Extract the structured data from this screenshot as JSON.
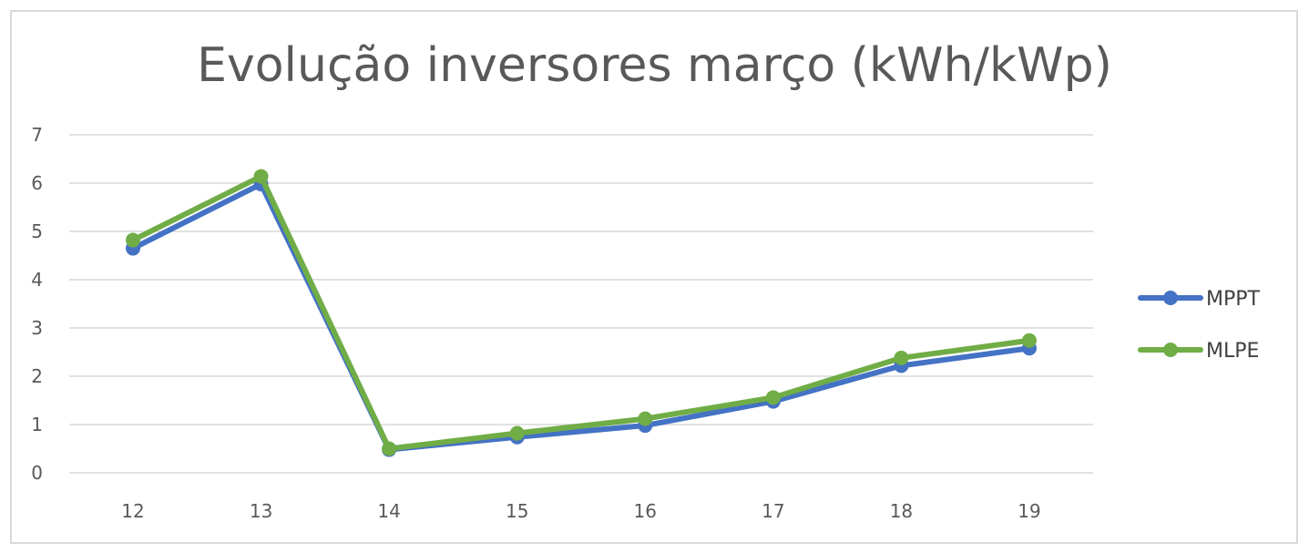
{
  "chart_data": {
    "type": "line",
    "title": "Evolução inversores março (kWh/kWp)",
    "xlabel": "",
    "ylabel": "",
    "categories": [
      "12",
      "13",
      "14",
      "15",
      "16",
      "17",
      "18",
      "19"
    ],
    "ylim": [
      0,
      7
    ],
    "yticks": [
      "0",
      "1",
      "2",
      "3",
      "4",
      "5",
      "6",
      "7"
    ],
    "grid": true,
    "legend_position": "right",
    "series": [
      {
        "name": "MPPT",
        "color": "#4472C4",
        "values": [
          4.65,
          5.98,
          0.48,
          0.74,
          0.98,
          1.48,
          2.22,
          2.58
        ]
      },
      {
        "name": "MLPE",
        "color": "#70AD47",
        "values": [
          4.82,
          6.14,
          0.5,
          0.82,
          1.12,
          1.56,
          2.38,
          2.74
        ]
      }
    ]
  }
}
